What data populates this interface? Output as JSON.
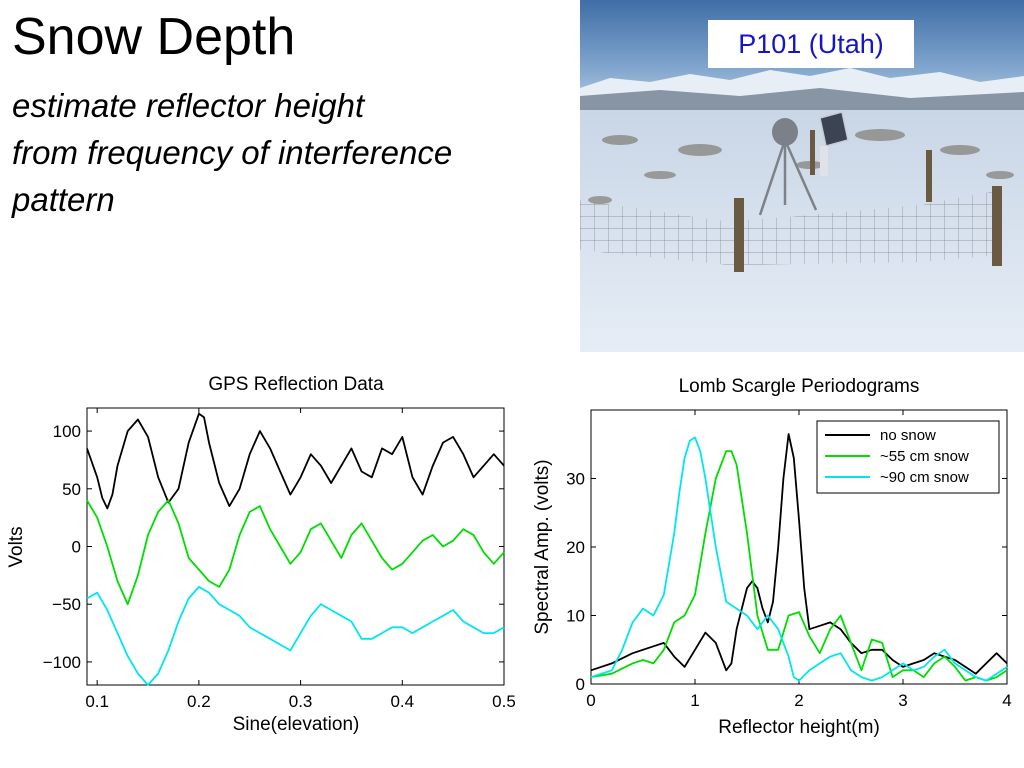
{
  "slide": {
    "title": "Snow Depth",
    "subtitle_lines": [
      "estimate reflector height",
      "from frequency of interference",
      "pattern"
    ]
  },
  "photo": {
    "label": "P101 (Utah)"
  },
  "colors": {
    "black": "#000000",
    "green": "#00dd00",
    "cyan": "#00e6ee",
    "label_blue": "#1414c8"
  },
  "chart_data": [
    {
      "type": "line",
      "title": "GPS Reflection Data",
      "xlabel": "Sine(elevation)",
      "ylabel": "Volts",
      "xlim": [
        0.09,
        0.5
      ],
      "ylim": [
        -120,
        120
      ],
      "xticks": [
        "0.1",
        "0.2",
        "0.3",
        "0.4",
        "0.5"
      ],
      "xtick_values": [
        0.1,
        0.2,
        0.3,
        0.4,
        0.5
      ],
      "yticks": [
        "100",
        "50",
        "0",
        "−50",
        "−100"
      ],
      "ytick_values": [
        100,
        50,
        0,
        -50,
        -100
      ],
      "grid": false,
      "series": [
        {
          "color": "black",
          "x": [
            0.09,
            0.1,
            0.105,
            0.11,
            0.115,
            0.12,
            0.13,
            0.14,
            0.15,
            0.16,
            0.17,
            0.18,
            0.19,
            0.2,
            0.205,
            0.21,
            0.22,
            0.23,
            0.24,
            0.25,
            0.26,
            0.27,
            0.28,
            0.29,
            0.3,
            0.31,
            0.32,
            0.33,
            0.34,
            0.35,
            0.36,
            0.37,
            0.38,
            0.39,
            0.4,
            0.41,
            0.42,
            0.43,
            0.44,
            0.45,
            0.46,
            0.47,
            0.48,
            0.49,
            0.5
          ],
          "y": [
            85,
            60,
            42,
            33,
            45,
            70,
            100,
            110,
            95,
            60,
            38,
            50,
            90,
            115,
            112,
            90,
            55,
            35,
            50,
            80,
            100,
            85,
            65,
            45,
            60,
            80,
            70,
            55,
            70,
            85,
            65,
            60,
            85,
            80,
            95,
            60,
            45,
            70,
            90,
            95,
            80,
            60,
            70,
            80,
            70
          ]
        },
        {
          "color": "green",
          "x": [
            0.09,
            0.1,
            0.11,
            0.12,
            0.13,
            0.14,
            0.15,
            0.16,
            0.17,
            0.18,
            0.19,
            0.2,
            0.21,
            0.22,
            0.23,
            0.24,
            0.25,
            0.26,
            0.27,
            0.28,
            0.29,
            0.3,
            0.31,
            0.32,
            0.33,
            0.34,
            0.35,
            0.36,
            0.37,
            0.38,
            0.39,
            0.4,
            0.41,
            0.42,
            0.43,
            0.44,
            0.45,
            0.46,
            0.47,
            0.48,
            0.49,
            0.5
          ],
          "y": [
            40,
            25,
            0,
            -30,
            -50,
            -25,
            10,
            30,
            40,
            20,
            -10,
            -20,
            -30,
            -35,
            -20,
            10,
            30,
            35,
            15,
            0,
            -15,
            -5,
            15,
            20,
            5,
            -10,
            10,
            20,
            5,
            -10,
            -20,
            -15,
            -5,
            5,
            10,
            0,
            5,
            15,
            10,
            -5,
            -15,
            -5
          ]
        },
        {
          "color": "cyan",
          "x": [
            0.09,
            0.1,
            0.11,
            0.12,
            0.13,
            0.14,
            0.15,
            0.16,
            0.17,
            0.18,
            0.19,
            0.2,
            0.21,
            0.22,
            0.23,
            0.24,
            0.25,
            0.26,
            0.27,
            0.28,
            0.29,
            0.3,
            0.31,
            0.32,
            0.33,
            0.34,
            0.35,
            0.36,
            0.37,
            0.38,
            0.39,
            0.4,
            0.41,
            0.42,
            0.43,
            0.44,
            0.45,
            0.46,
            0.47,
            0.48,
            0.49,
            0.5
          ],
          "y": [
            -45,
            -40,
            -55,
            -75,
            -95,
            -110,
            -120,
            -110,
            -90,
            -65,
            -45,
            -35,
            -40,
            -50,
            -55,
            -60,
            -70,
            -75,
            -80,
            -85,
            -90,
            -75,
            -60,
            -50,
            -55,
            -60,
            -65,
            -80,
            -80,
            -75,
            -70,
            -70,
            -75,
            -70,
            -65,
            -60,
            -55,
            -65,
            -70,
            -75,
            -75,
            -70
          ]
        }
      ]
    },
    {
      "type": "line",
      "title": "Lomb Scargle Periodograms",
      "xlabel": "Reflector height(m)",
      "ylabel": "Spectral Amp. (volts)",
      "xlim": [
        0,
        4
      ],
      "ylim": [
        0,
        40
      ],
      "xticks": [
        "0",
        "1",
        "2",
        "3",
        "4"
      ],
      "xtick_values": [
        0,
        1,
        2,
        3,
        4
      ],
      "yticks": [
        "0",
        "10",
        "20",
        "30"
      ],
      "ytick_values": [
        0,
        10,
        20,
        30
      ],
      "grid": false,
      "legend_position": "top-right",
      "series": [
        {
          "name": "no snow",
          "color": "black",
          "x": [
            0,
            0.2,
            0.4,
            0.6,
            0.7,
            0.8,
            0.9,
            1.0,
            1.1,
            1.2,
            1.3,
            1.35,
            1.4,
            1.5,
            1.55,
            1.6,
            1.65,
            1.7,
            1.75,
            1.8,
            1.85,
            1.9,
            1.95,
            2.0,
            2.05,
            2.1,
            2.2,
            2.3,
            2.4,
            2.5,
            2.6,
            2.7,
            2.8,
            2.9,
            3.0,
            3.1,
            3.2,
            3.3,
            3.4,
            3.5,
            3.6,
            3.7,
            3.8,
            3.9,
            4.0
          ],
          "y": [
            2,
            3,
            4.5,
            5.5,
            6,
            4,
            2.5,
            5,
            7.5,
            6,
            2,
            3,
            8,
            14,
            15,
            14,
            11,
            9,
            12,
            20,
            30,
            36.5,
            33,
            24,
            14,
            8,
            8.5,
            9,
            8,
            6,
            4.5,
            5,
            5,
            3.5,
            2.5,
            3,
            3.5,
            4.5,
            4,
            3.5,
            2.5,
            1.5,
            3,
            4.5,
            3
          ]
        },
        {
          "name": "~55 cm snow",
          "color": "green",
          "x": [
            0,
            0.2,
            0.4,
            0.5,
            0.6,
            0.7,
            0.8,
            0.9,
            1.0,
            1.1,
            1.2,
            1.3,
            1.35,
            1.4,
            1.5,
            1.6,
            1.7,
            1.8,
            1.9,
            2.0,
            2.1,
            2.2,
            2.3,
            2.4,
            2.5,
            2.6,
            2.7,
            2.8,
            2.9,
            3.0,
            3.1,
            3.2,
            3.3,
            3.4,
            3.5,
            3.6,
            3.7,
            3.8,
            3.9,
            4.0
          ],
          "y": [
            1,
            1.5,
            3,
            3.5,
            3,
            5,
            9,
            10,
            13,
            22,
            30,
            34,
            34,
            32,
            22,
            10,
            5,
            5,
            10,
            10.5,
            7,
            4.5,
            8,
            10,
            6,
            2,
            6.5,
            6,
            1,
            2,
            2,
            1,
            3,
            4,
            2.5,
            0.5,
            1,
            0.5,
            1,
            2
          ]
        },
        {
          "name": "~90 cm snow",
          "color": "cyan",
          "x": [
            0,
            0.2,
            0.3,
            0.4,
            0.5,
            0.6,
            0.7,
            0.8,
            0.85,
            0.9,
            0.95,
            1.0,
            1.05,
            1.1,
            1.2,
            1.3,
            1.4,
            1.5,
            1.6,
            1.7,
            1.8,
            1.9,
            1.95,
            2.0,
            2.1,
            2.2,
            2.3,
            2.4,
            2.5,
            2.6,
            2.7,
            2.8,
            2.9,
            3.0,
            3.1,
            3.2,
            3.3,
            3.4,
            3.5,
            3.6,
            3.7,
            3.8,
            3.9,
            4.0
          ],
          "y": [
            1,
            2,
            5,
            9,
            11,
            10,
            13,
            22,
            28,
            33,
            35.5,
            36,
            34,
            30,
            20,
            12,
            11,
            10,
            8,
            10,
            8,
            4,
            1,
            0.5,
            2,
            3,
            4,
            4.5,
            2,
            1,
            0.5,
            1,
            2,
            3,
            2,
            2.5,
            4,
            5,
            3,
            2,
            1,
            0.5,
            1.5,
            2.5
          ]
        }
      ]
    }
  ]
}
